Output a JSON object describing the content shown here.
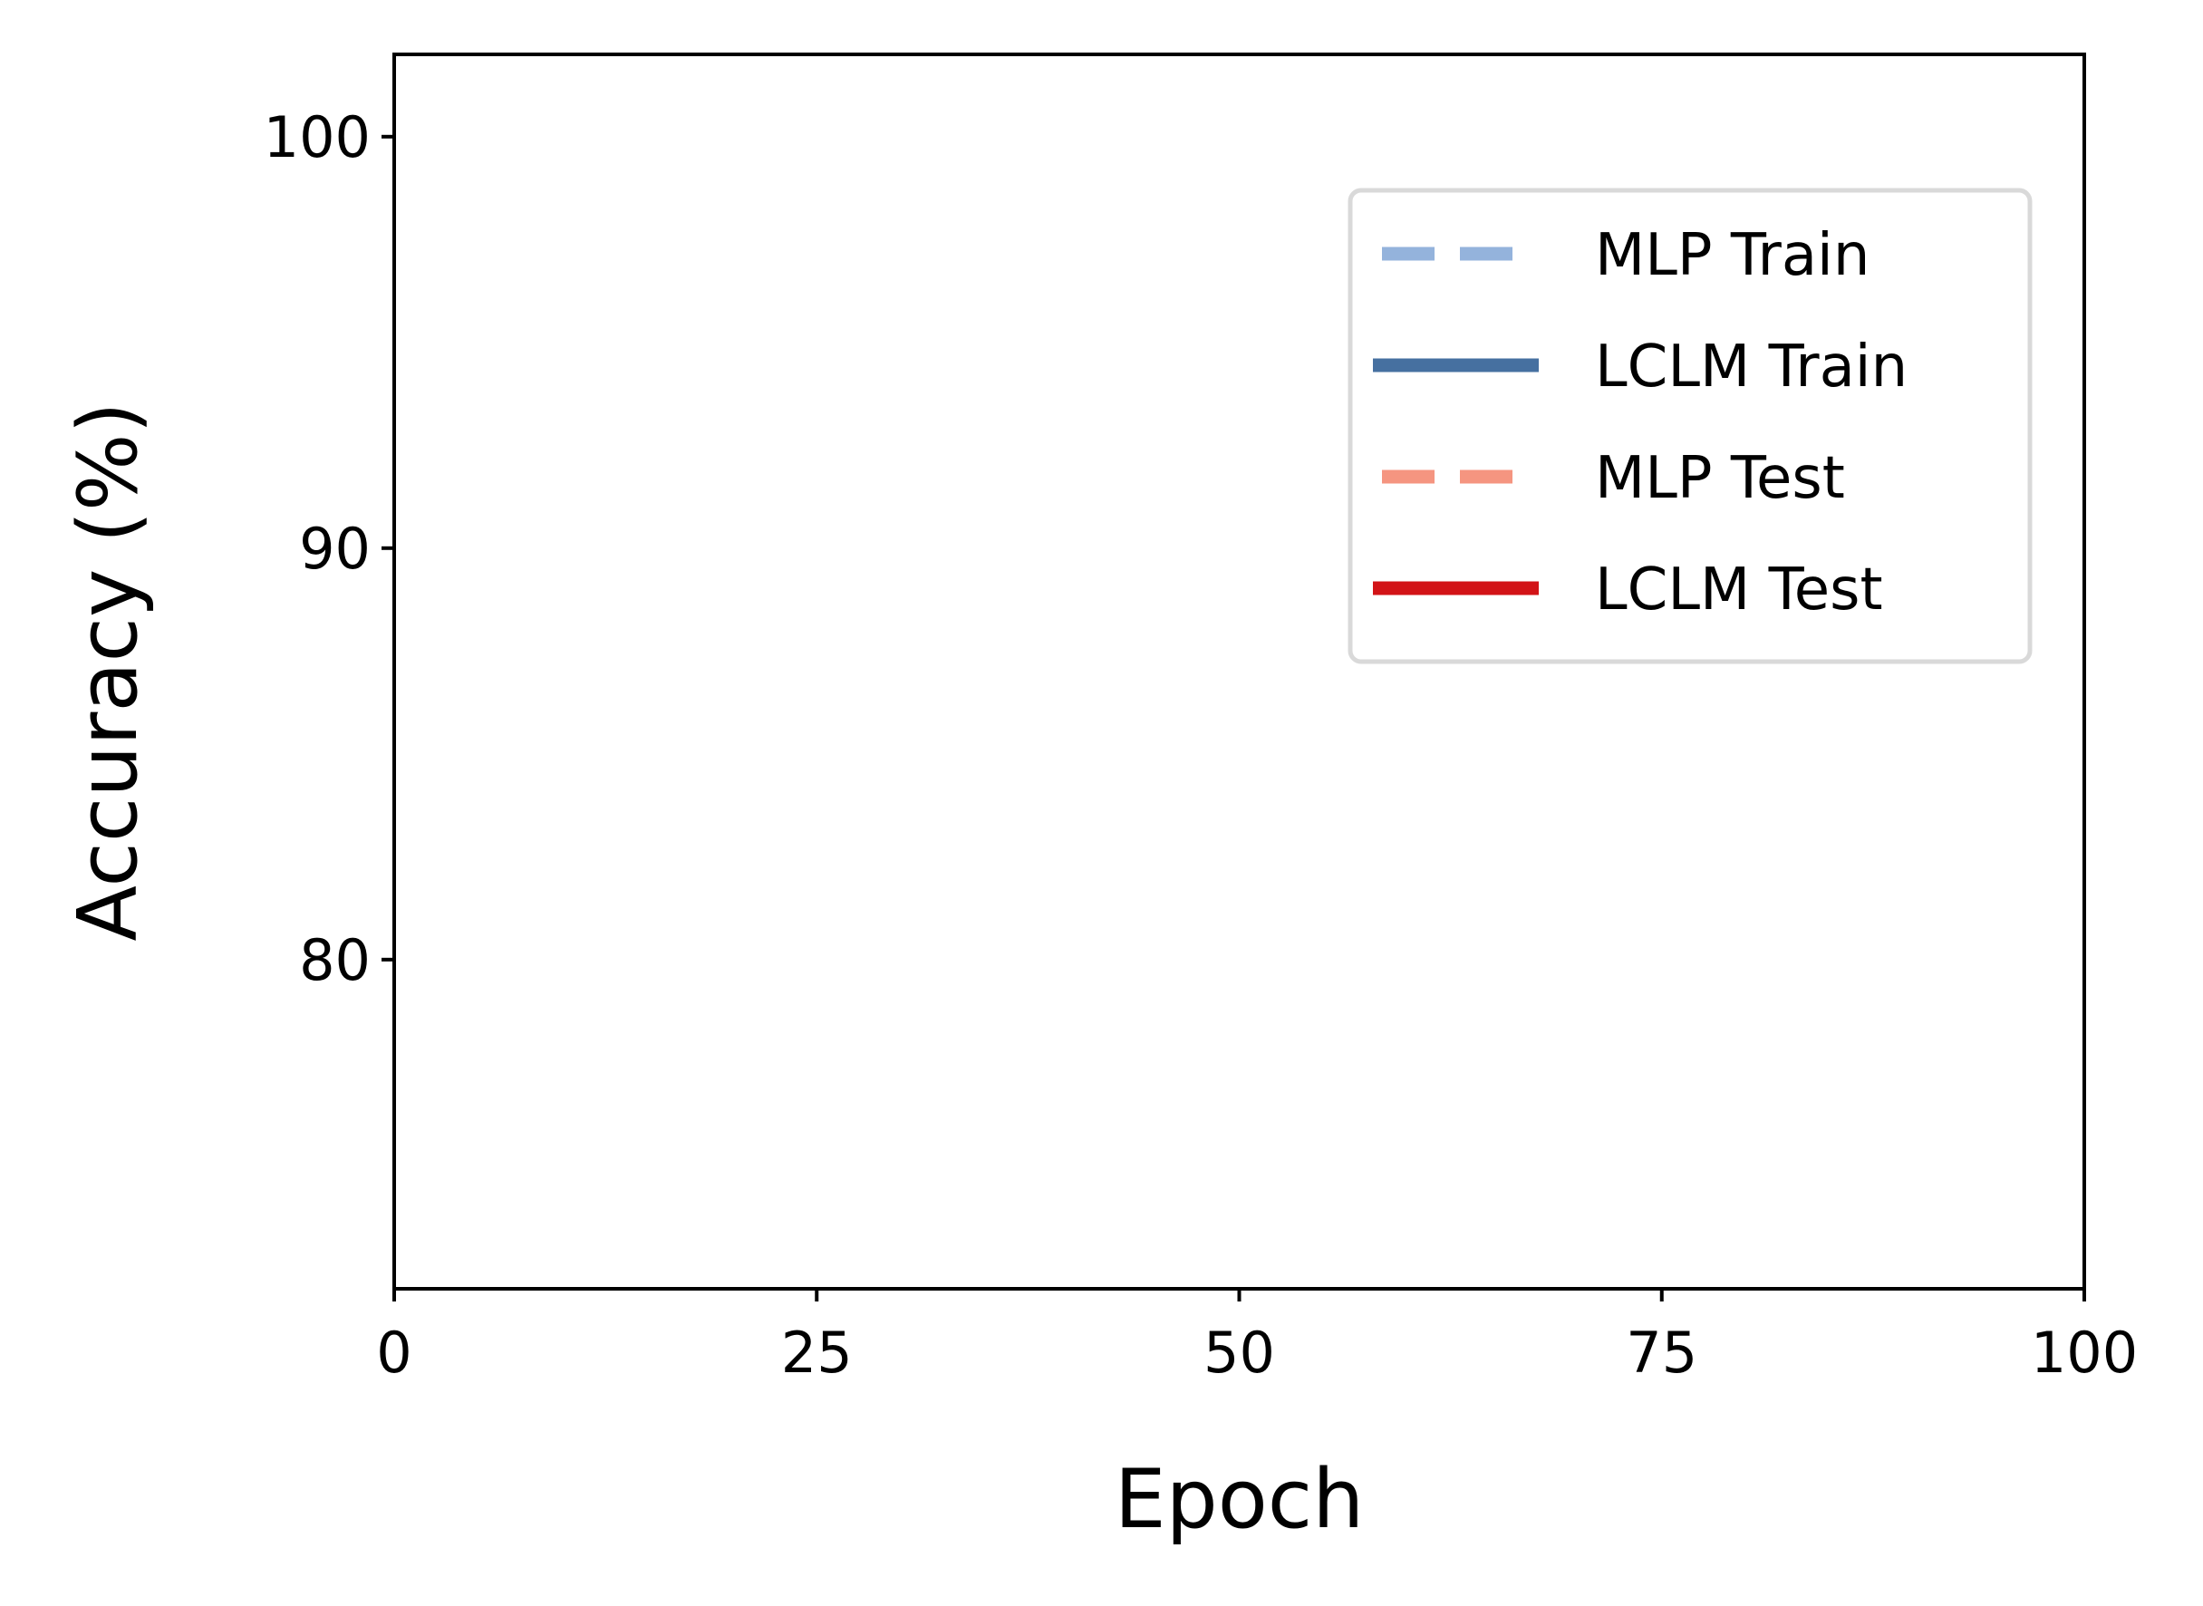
{
  "chart_data": {
    "type": "line",
    "title": "",
    "xlabel": "Epoch",
    "ylabel": "Accuracy (%)",
    "xlim": [
      0,
      100
    ],
    "ylim": [
      72,
      102
    ],
    "x_ticks": [
      0,
      25,
      50,
      75,
      100
    ],
    "x_tick_labels": [
      "0",
      "25",
      "50",
      "75",
      "100"
    ],
    "y_ticks": [
      80,
      90,
      100
    ],
    "y_tick_labels": [
      "80",
      "90",
      "100"
    ],
    "grid": false,
    "legend_position": "upper-right",
    "series": [
      {
        "name": "MLP Train",
        "color": "#94b3dc",
        "style": "dashed",
        "values": []
      },
      {
        "name": "LCLM Train",
        "color": "#4670a0",
        "style": "solid",
        "values": []
      },
      {
        "name": "MLP Test",
        "color": "#f59580",
        "style": "dashed",
        "values": []
      },
      {
        "name": "LCLM Test",
        "color": "#d21317",
        "style": "solid",
        "values": []
      }
    ]
  }
}
